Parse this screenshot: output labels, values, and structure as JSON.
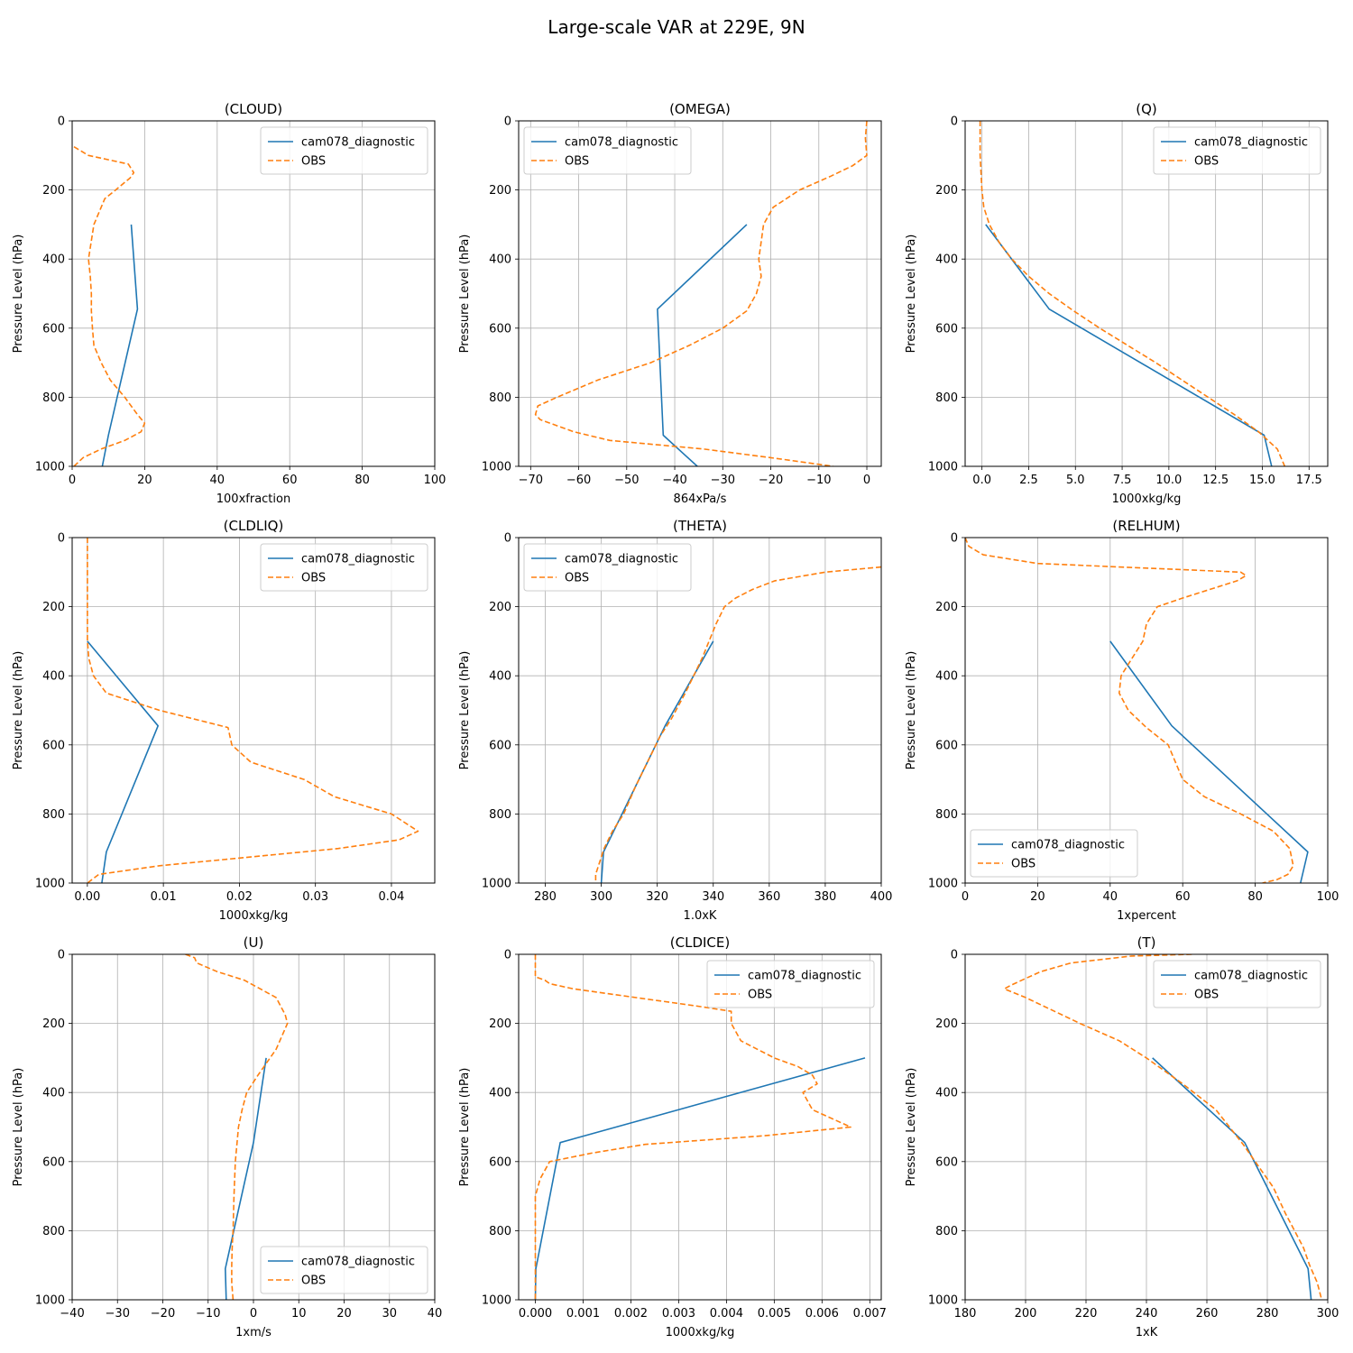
{
  "title": "Large-scale VAR at 229E, 9N",
  "colors": {
    "model": "#1f77b4",
    "obs": "#ff7f0e",
    "grid": "#b0b0b0"
  },
  "chart_data": [
    {
      "type": "line",
      "title": "(CLOUD)",
      "xlabel": "100xfraction",
      "ylabel": "Pressure Level (hPa)",
      "xlim": [
        0,
        100
      ],
      "ylim": [
        1000,
        0
      ],
      "xticks": [
        0,
        20,
        40,
        60,
        80,
        100
      ],
      "xticklabels": [
        "0",
        "20",
        "40",
        "60",
        "80",
        "100"
      ],
      "yticks": [
        0,
        200,
        400,
        600,
        800,
        1000
      ],
      "yticklabels": [
        "0",
        "200",
        "400",
        "600",
        "800",
        "1000"
      ],
      "grid": true,
      "legend": "upper right",
      "series": [
        {
          "name": "cam078_diagnostic",
          "style": "solid",
          "x": [
            16.3,
            18.0,
            10.0,
            8.3
          ],
          "y": [
            300,
            545,
            910,
            1000
          ]
        },
        {
          "name": "OBS",
          "style": "dashed",
          "x": [
            0.5,
            4.5,
            15.5,
            17.0,
            16.0,
            12.0,
            9.0,
            6.0,
            4.5,
            5.0,
            5.3,
            5.3,
            5.6,
            6.0,
            8.0,
            10.5,
            14.5,
            18.0,
            20.0,
            19.0,
            14.5,
            8.0,
            3.0,
            0.5
          ],
          "y": [
            75,
            100,
            125,
            150,
            165,
            200,
            225,
            300,
            400,
            450,
            500,
            550,
            600,
            650,
            700,
            750,
            800,
            850,
            875,
            900,
            925,
            950,
            975,
            1000
          ]
        }
      ]
    },
    {
      "type": "line",
      "title": "(OMEGA)",
      "xlabel": "864xPa/s",
      "ylabel": "Pressure Level (hPa)",
      "xlim": [
        -72.5,
        3
      ],
      "ylim": [
        1000,
        0
      ],
      "xticks": [
        -70,
        -60,
        -50,
        -40,
        -30,
        -20,
        -10,
        0
      ],
      "xticklabels": [
        "−70",
        "−60",
        "−50",
        "−40",
        "−30",
        "−20",
        "−10",
        "0"
      ],
      "yticks": [
        0,
        200,
        400,
        600,
        800,
        1000
      ],
      "yticklabels": [
        "0",
        "200",
        "400",
        "600",
        "800",
        "1000"
      ],
      "grid": true,
      "legend": "upper left",
      "series": [
        {
          "name": "cam078_diagnostic",
          "style": "solid",
          "x": [
            -25.0,
            -43.6,
            -42.4,
            -35.3
          ],
          "y": [
            300,
            545,
            910,
            1000
          ]
        },
        {
          "name": "OBS",
          "style": "dashed",
          "x": [
            0.0,
            -0.3,
            0.0,
            -3.0,
            -7.5,
            -14.0,
            -19.5,
            -21.5,
            -22.0,
            -22.5,
            -22.0,
            -23.0,
            -25.0,
            -30.0,
            -37.0,
            -45.0,
            -56.0,
            -64.5,
            -68.5,
            -69.0,
            -68.0,
            -66.0,
            -61.0,
            -53.5,
            -34.0,
            -20.0,
            -7.0
          ],
          "y": [
            0,
            50,
            100,
            130,
            160,
            200,
            250,
            300,
            350,
            400,
            450,
            500,
            550,
            600,
            650,
            700,
            750,
            800,
            825,
            850,
            865,
            875,
            900,
            925,
            950,
            975,
            1000
          ]
        }
      ]
    },
    {
      "type": "line",
      "title": "(Q)",
      "xlabel": "1000xkg/kg",
      "ylabel": "Pressure Level (hPa)",
      "xlim": [
        -0.9,
        18.5
      ],
      "ylim": [
        1000,
        0
      ],
      "xticks": [
        0,
        2.5,
        5,
        7.5,
        10,
        12.5,
        15,
        17.5
      ],
      "xticklabels": [
        "0.0",
        "2.5",
        "5.0",
        "7.5",
        "10.0",
        "12.5",
        "15.0",
        "17.5"
      ],
      "yticks": [
        0,
        200,
        400,
        600,
        800,
        1000
      ],
      "yticklabels": [
        "0",
        "200",
        "400",
        "600",
        "800",
        "1000"
      ],
      "grid": true,
      "legend": "upper right",
      "series": [
        {
          "name": "cam078_diagnostic",
          "style": "solid",
          "x": [
            0.2,
            3.6,
            15.1,
            15.5
          ],
          "y": [
            300,
            545,
            910,
            1000
          ]
        },
        {
          "name": "OBS",
          "style": "dashed",
          "x": [
            -0.1,
            -0.1,
            -0.1,
            -0.05,
            0.0,
            0.1,
            0.4,
            0.9,
            1.6,
            2.5,
            3.6,
            4.9,
            6.3,
            7.8,
            9.3,
            10.7,
            12.1,
            13.5,
            14.8,
            15.8,
            16.2
          ],
          "y": [
            0,
            50,
            100,
            150,
            200,
            250,
            300,
            350,
            400,
            450,
            500,
            550,
            600,
            650,
            700,
            750,
            800,
            850,
            900,
            950,
            1000
          ]
        }
      ]
    },
    {
      "type": "line",
      "title": "(CLDLIQ)",
      "xlabel": "1000xkg/kg",
      "ylabel": "Pressure Level (hPa)",
      "xlim": [
        -0.002,
        0.0457
      ],
      "ylim": [
        1000,
        0
      ],
      "xticks": [
        0,
        0.01,
        0.02,
        0.03,
        0.04
      ],
      "xticklabels": [
        "0.00",
        "0.01",
        "0.02",
        "0.03",
        "0.04"
      ],
      "yticks": [
        0,
        200,
        400,
        600,
        800,
        1000
      ],
      "yticklabels": [
        "0",
        "200",
        "400",
        "600",
        "800",
        "1000"
      ],
      "grid": true,
      "legend": "upper right",
      "series": [
        {
          "name": "cam078_diagnostic",
          "style": "solid",
          "x": [
            0.0,
            0.0093,
            0.0025,
            0.0019
          ],
          "y": [
            300,
            545,
            910,
            1000
          ]
        },
        {
          "name": "OBS",
          "style": "dashed",
          "x": [
            0.0,
            0.0,
            0.0,
            0.0,
            0.0,
            0.0,
            0.0,
            0.0002,
            0.0008,
            0.0025,
            0.0095,
            0.0185,
            0.019,
            0.0215,
            0.0285,
            0.0325,
            0.04,
            0.0435,
            0.041,
            0.033,
            0.0095,
            0.0015,
            0.0
          ],
          "y": [
            0,
            50,
            100,
            150,
            200,
            250,
            300,
            350,
            400,
            450,
            500,
            550,
            600,
            650,
            700,
            750,
            800,
            850,
            875,
            900,
            950,
            975,
            1000
          ]
        }
      ]
    },
    {
      "type": "line",
      "title": "(THETA)",
      "xlabel": "1.0xK",
      "ylabel": "Pressure Level (hPa)",
      "xlim": [
        270.5,
        400
      ],
      "ylim": [
        1000,
        0
      ],
      "xticks": [
        280,
        300,
        320,
        340,
        360,
        380,
        400
      ],
      "xticklabels": [
        "280",
        "300",
        "320",
        "340",
        "360",
        "380",
        "400"
      ],
      "yticks": [
        0,
        200,
        400,
        600,
        800,
        1000
      ],
      "yticklabels": [
        "0",
        "200",
        "400",
        "600",
        "800",
        "1000"
      ],
      "grid": true,
      "legend": "upper left",
      "series": [
        {
          "name": "cam078_diagnostic",
          "style": "solid",
          "x": [
            340.0,
            322.8,
            300.8,
            300.0
          ],
          "y": [
            300,
            545,
            910,
            1000
          ]
        },
        {
          "name": "OBS",
          "style": "dashed",
          "x": [
            400,
            380,
            362,
            354,
            348,
            344,
            341,
            336,
            330,
            325,
            321,
            318,
            315,
            312,
            308,
            304,
            301,
            299,
            298,
            298
          ],
          "y": [
            85,
            100,
            125,
            150,
            175,
            200,
            250,
            350,
            450,
            525,
            575,
            625,
            675,
            725,
            800,
            850,
            900,
            950,
            975,
            1000
          ]
        }
      ]
    },
    {
      "type": "line",
      "title": "(RELHUM)",
      "xlabel": "1xpercent",
      "ylabel": "Pressure Level (hPa)",
      "xlim": [
        0,
        100
      ],
      "ylim": [
        1000,
        0
      ],
      "xticks": [
        0,
        20,
        40,
        60,
        80,
        100
      ],
      "xticklabels": [
        "0",
        "20",
        "40",
        "60",
        "80",
        "100"
      ],
      "yticks": [
        0,
        200,
        400,
        600,
        800,
        1000
      ],
      "yticklabels": [
        "0",
        "200",
        "400",
        "600",
        "800",
        "1000"
      ],
      "grid": true,
      "legend": "lower left",
      "series": [
        {
          "name": "cam078_diagnostic",
          "style": "solid",
          "x": [
            40.0,
            57.0,
            94.5,
            92.5
          ],
          "y": [
            300,
            545,
            910,
            1000
          ]
        },
        {
          "name": "OBS",
          "style": "dashed",
          "x": [
            0.0,
            1.0,
            5.0,
            20.0,
            76.0,
            77.5,
            75.0,
            60.0,
            53.0,
            50.0,
            49.0,
            46.0,
            43.0,
            42.5,
            45.0,
            50.0,
            56.0,
            60.0,
            66.0,
            76.0,
            85.0,
            89.5,
            90.5,
            89.0,
            86.0,
            82.0
          ],
          "y": [
            0,
            25,
            50,
            75,
            100,
            110,
            125,
            175,
            200,
            250,
            300,
            350,
            400,
            450,
            500,
            550,
            600,
            700,
            750,
            800,
            850,
            900,
            950,
            975,
            990,
            1000
          ]
        }
      ]
    },
    {
      "type": "line",
      "title": "(U)",
      "xlabel": "1xm/s",
      "ylabel": "Pressure Level (hPa)",
      "xlim": [
        -40,
        40
      ],
      "ylim": [
        1000,
        0
      ],
      "xticks": [
        -40,
        -30,
        -20,
        -10,
        0,
        10,
        20,
        30,
        40
      ],
      "xticklabels": [
        "−40",
        "−30",
        "−20",
        "−10",
        "0",
        "10",
        "20",
        "30",
        "40"
      ],
      "yticks": [
        0,
        200,
        400,
        600,
        800,
        1000
      ],
      "yticklabels": [
        "0",
        "200",
        "400",
        "600",
        "800",
        "1000"
      ],
      "grid": true,
      "legend": "lower right",
      "series": [
        {
          "name": "cam078_diagnostic",
          "style": "solid",
          "x": [
            2.8,
            0.0,
            -6.2,
            -6.0
          ],
          "y": [
            300,
            545,
            910,
            1000
          ]
        },
        {
          "name": "OBS",
          "style": "dashed",
          "x": [
            -15.0,
            -13.0,
            -12.5,
            -8.0,
            -2.0,
            5.0,
            7.0,
            7.5,
            5.0,
            1.0,
            -1.5,
            -2.5,
            -3.3,
            -4.0,
            -4.3,
            -4.5,
            -4.7,
            -4.8,
            -4.8,
            -4.5
          ],
          "y": [
            0,
            10,
            25,
            50,
            75,
            125,
            175,
            200,
            275,
            350,
            400,
            450,
            500,
            600,
            700,
            800,
            850,
            900,
            950,
            1000
          ]
        }
      ]
    },
    {
      "type": "line",
      "title": "(CLDICE)",
      "xlabel": "1000xkg/kg",
      "ylabel": "Pressure Level (hPa)",
      "xlim": [
        -0.00035,
        0.00724
      ],
      "ylim": [
        1000,
        0
      ],
      "xticks": [
        0,
        0.001,
        0.002,
        0.003,
        0.004,
        0.005,
        0.006,
        0.007
      ],
      "xticklabels": [
        "0.000",
        "0.001",
        "0.002",
        "0.003",
        "0.004",
        "0.005",
        "0.006",
        "0.007"
      ],
      "yticks": [
        0,
        200,
        400,
        600,
        800,
        1000
      ],
      "yticklabels": [
        "0",
        "200",
        "400",
        "600",
        "800",
        "1000"
      ],
      "grid": true,
      "legend": "upper right",
      "series": [
        {
          "name": "cam078_diagnostic",
          "style": "solid",
          "x": [
            0.0069,
            0.00052,
            1e-05,
            0.0
          ],
          "y": [
            300,
            545,
            910,
            1000
          ]
        },
        {
          "name": "OBS",
          "style": "dashed",
          "x": [
            0.0,
            0.0,
            0.0,
            0.0002,
            0.0003,
            0.0008,
            0.0034,
            0.0041,
            0.0041,
            0.0043,
            0.005,
            0.0055,
            0.0058,
            0.0059,
            0.0056,
            0.0058,
            0.0066,
            0.0048,
            0.0023,
            0.0012,
            0.0003,
            0.0001,
            0.0,
            0.0,
            0.0,
            0.0,
            0.0
          ],
          "y": [
            0,
            25,
            65,
            75,
            85,
            100,
            150,
            165,
            200,
            250,
            300,
            325,
            350,
            375,
            400,
            450,
            500,
            525,
            550,
            575,
            600,
            650,
            700,
            800,
            900,
            950,
            1000
          ]
        }
      ]
    },
    {
      "type": "line",
      "title": "(T)",
      "xlabel": "1xK",
      "ylabel": "Pressure Level (hPa)",
      "xlim": [
        180,
        300
      ],
      "ylim": [
        1000,
        0
      ],
      "xticks": [
        180,
        200,
        220,
        240,
        260,
        280,
        300
      ],
      "xticklabels": [
        "180",
        "200",
        "220",
        "240",
        "260",
        "280",
        "300"
      ],
      "yticks": [
        0,
        200,
        400,
        600,
        800,
        1000
      ],
      "yticklabels": [
        "0",
        "200",
        "400",
        "600",
        "800",
        "1000"
      ],
      "grid": true,
      "legend": "upper right",
      "series": [
        {
          "name": "cam078_diagnostic",
          "style": "solid",
          "x": [
            242.0,
            272.5,
            293.5,
            294.5
          ],
          "y": [
            300,
            545,
            910,
            1000
          ]
        },
        {
          "name": "OBS",
          "style": "dashed",
          "x": [
            255.0,
            235.0,
            215.0,
            205.0,
            200.0,
            195.0,
            193.0,
            200.0,
            218.0,
            231.0,
            240.0,
            252.0,
            263.0,
            272.0,
            278.0,
            282.0,
            286.0,
            289.0,
            292.0,
            294.0,
            296.5,
            298.0
          ],
          "y": [
            0,
            5,
            25,
            50,
            70,
            90,
            100,
            125,
            200,
            250,
            300,
            375,
            450,
            550,
            625,
            675,
            750,
            800,
            850,
            900,
            950,
            1000
          ]
        }
      ]
    }
  ]
}
